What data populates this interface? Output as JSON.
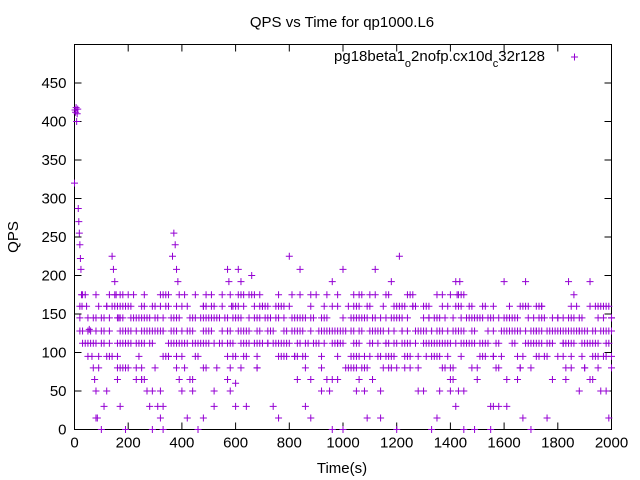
{
  "chart_data": {
    "type": "scatter",
    "title": "QPS vs Time for qp1000.L6",
    "xlabel": "Time(s)",
    "ylabel": "QPS",
    "xlim": [
      0,
      2000
    ],
    "ylim": [
      0,
      500
    ],
    "xticks": [
      0,
      200,
      400,
      600,
      800,
      1000,
      1200,
      1400,
      1600,
      1800,
      2000
    ],
    "yticks": [
      0,
      50,
      100,
      150,
      200,
      250,
      300,
      350,
      400,
      450
    ],
    "legend_position": "top-right",
    "grid": false,
    "marker": "plus",
    "series": [
      {
        "name_parts": [
          "pg18beta1",
          "o",
          "2nofp.cx10d",
          "c",
          "32r128"
        ],
        "color": "#9400d3",
        "points": [
          [
            0,
            320
          ],
          [
            2,
            415
          ],
          [
            4,
            412
          ],
          [
            6,
            418
          ],
          [
            8,
            400
          ],
          [
            10,
            410
          ],
          [
            12,
            416
          ],
          [
            14,
            287
          ],
          [
            16,
            270
          ],
          [
            18,
            255
          ],
          [
            20,
            240
          ],
          [
            22,
            222
          ],
          [
            24,
            208
          ],
          [
            26,
            175
          ],
          [
            28,
            160
          ],
          [
            40,
            175
          ],
          [
            45,
            160
          ],
          [
            50,
            145
          ],
          [
            55,
            130
          ],
          [
            60,
            112
          ],
          [
            65,
            95
          ],
          [
            70,
            80
          ],
          [
            75,
            65
          ],
          [
            80,
            50
          ],
          [
            85,
            15
          ],
          [
            100,
            0
          ],
          [
            110,
            128
          ],
          [
            120,
            160
          ],
          [
            140,
            225
          ],
          [
            145,
            208
          ],
          [
            150,
            192
          ],
          [
            155,
            175
          ],
          [
            160,
            160
          ],
          [
            165,
            145
          ],
          [
            200,
            175
          ],
          [
            210,
            145
          ],
          [
            230,
            112
          ],
          [
            250,
            65
          ],
          [
            270,
            50
          ],
          [
            290,
            0
          ],
          [
            320,
            175
          ],
          [
            330,
            128
          ],
          [
            350,
            95
          ],
          [
            365,
            225
          ],
          [
            370,
            255
          ],
          [
            375,
            240
          ],
          [
            380,
            208
          ],
          [
            385,
            192
          ],
          [
            390,
            175
          ],
          [
            410,
            80
          ],
          [
            420,
            15
          ],
          [
            440,
            65
          ],
          [
            460,
            0
          ],
          [
            480,
            160
          ],
          [
            500,
            112
          ],
          [
            520,
            30
          ],
          [
            570,
            208
          ],
          [
            575,
            192
          ],
          [
            580,
            175
          ],
          [
            585,
            160
          ],
          [
            590,
            145
          ],
          [
            600,
            60
          ],
          [
            610,
            208
          ],
          [
            620,
            192
          ],
          [
            640,
            128
          ],
          [
            660,
            200
          ],
          [
            680,
            80
          ],
          [
            700,
            160
          ],
          [
            720,
            112
          ],
          [
            740,
            30
          ],
          [
            780,
            145
          ],
          [
            800,
            225
          ],
          [
            810,
            128
          ],
          [
            820,
            95
          ],
          [
            840,
            208
          ],
          [
            880,
            15
          ],
          [
            900,
            175
          ],
          [
            920,
            128
          ],
          [
            940,
            65
          ],
          [
            960,
            192
          ],
          [
            980,
            112
          ],
          [
            1000,
            208
          ],
          [
            1020,
            160
          ],
          [
            1040,
            80
          ],
          [
            1060,
            145
          ],
          [
            1080,
            50
          ],
          [
            1100,
            128
          ],
          [
            1120,
            208
          ],
          [
            1140,
            15
          ],
          [
            1160,
            112
          ],
          [
            1180,
            192
          ],
          [
            1200,
            0
          ],
          [
            1210,
            225
          ],
          [
            1220,
            128
          ],
          [
            1240,
            95
          ],
          [
            1260,
            160
          ],
          [
            1280,
            50
          ],
          [
            1300,
            112
          ],
          [
            1320,
            145
          ],
          [
            1400,
            80
          ],
          [
            1420,
            192
          ],
          [
            1425,
            175
          ],
          [
            1430,
            175
          ],
          [
            1435,
            192
          ],
          [
            1440,
            160
          ],
          [
            1450,
            0
          ],
          [
            1480,
            128
          ],
          [
            1500,
            65
          ],
          [
            1520,
            112
          ],
          [
            1540,
            145
          ],
          [
            1560,
            95
          ],
          [
            1580,
            30
          ],
          [
            1600,
            192
          ],
          [
            1620,
            160
          ],
          [
            1640,
            112
          ],
          [
            1660,
            80
          ],
          [
            1680,
            192
          ],
          [
            1700,
            0
          ],
          [
            1720,
            128
          ],
          [
            1740,
            160
          ],
          [
            1760,
            95
          ],
          [
            1780,
            65
          ],
          [
            1800,
            145
          ],
          [
            1820,
            112
          ],
          [
            1840,
            192
          ],
          [
            1860,
            175
          ],
          [
            1880,
            128
          ],
          [
            1900,
            80
          ],
          [
            1920,
            192
          ],
          [
            1940,
            112
          ],
          [
            1960,
            160
          ],
          [
            1980,
            50
          ],
          [
            1990,
            15
          ],
          [
            2000,
            145
          ]
        ],
        "bands": [
          {
            "y": 175,
            "xmin": 20,
            "xmax": 1450,
            "density": 0.35
          },
          {
            "y": 160,
            "xmin": 20,
            "xmax": 2000,
            "density": 0.45
          },
          {
            "y": 145,
            "xmin": 20,
            "xmax": 2000,
            "density": 0.55
          },
          {
            "y": 128,
            "xmin": 20,
            "xmax": 2000,
            "density": 0.7
          },
          {
            "y": 112,
            "xmin": 20,
            "xmax": 2000,
            "density": 0.65
          },
          {
            "y": 95,
            "xmin": 40,
            "xmax": 2000,
            "density": 0.4
          },
          {
            "y": 80,
            "xmin": 40,
            "xmax": 2000,
            "density": 0.18
          },
          {
            "y": 65,
            "xmin": 40,
            "xmax": 2000,
            "density": 0.12
          },
          {
            "y": 50,
            "xmin": 40,
            "xmax": 2000,
            "density": 0.08
          },
          {
            "y": 30,
            "xmin": 100,
            "xmax": 2000,
            "density": 0.05
          },
          {
            "y": 15,
            "xmin": 50,
            "xmax": 2000,
            "density": 0.04
          },
          {
            "y": 0,
            "xmin": 90,
            "xmax": 2000,
            "density": 0.04
          }
        ]
      }
    ]
  }
}
